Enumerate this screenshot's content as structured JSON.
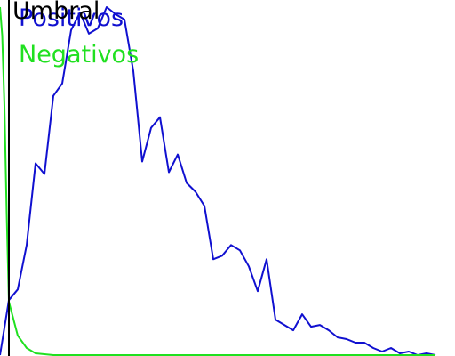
{
  "chart_data": {
    "type": "line",
    "x": [
      0,
      0.25,
      0.5,
      0.75,
      1,
      2,
      3,
      4,
      5,
      6,
      7,
      8,
      9,
      10,
      11,
      12,
      13,
      14,
      15,
      16,
      17,
      18,
      19,
      20,
      21,
      22,
      23,
      24,
      25,
      26,
      27,
      28,
      29,
      30,
      31,
      32,
      33,
      34,
      35,
      36,
      37,
      38,
      39,
      40,
      41,
      42,
      43,
      44,
      45,
      46,
      47,
      48,
      49
    ],
    "xlim": [
      0,
      51.2
    ],
    "ylim": [
      0,
      40
    ],
    "threshold": 1,
    "series": [
      {
        "name": "Positivos",
        "color": "#1010d0",
        "values": [
          0,
          null,
          null,
          null,
          6.2,
          7.4,
          12.4,
          21.6,
          20.4,
          29.2,
          30.6,
          36.6,
          38.6,
          36.2,
          36.8,
          39.2,
          38.4,
          37.8,
          32.0,
          21.8,
          25.6,
          26.8,
          20.6,
          22.6,
          19.4,
          18.4,
          16.8,
          10.8,
          11.2,
          12.4,
          11.8,
          10.0,
          7.2,
          10.8,
          4.0,
          3.4,
          2.8,
          4.6,
          3.2,
          3.4,
          2.8,
          2.0,
          1.8,
          1.4,
          1.4,
          0.8,
          0.4,
          0.8,
          0.2,
          0.4,
          0,
          0.2,
          0
        ]
      },
      {
        "name": "Negativos",
        "color": "#20e020",
        "values": [
          39.2,
          36.0,
          28.0,
          16.0,
          6.0,
          2.2,
          0.8,
          0.2,
          0.1,
          0,
          0,
          0,
          0,
          0,
          0,
          0,
          0,
          0,
          0,
          0,
          0,
          0,
          0,
          0,
          0,
          0,
          0,
          0,
          0,
          0,
          0,
          0,
          0,
          0,
          0,
          0,
          0,
          0,
          0,
          0,
          0,
          0,
          0,
          0,
          0,
          0,
          0,
          0,
          0,
          0,
          0,
          0,
          0
        ]
      }
    ],
    "threshold_label": "Umbral",
    "threshold_color": "#000000"
  }
}
